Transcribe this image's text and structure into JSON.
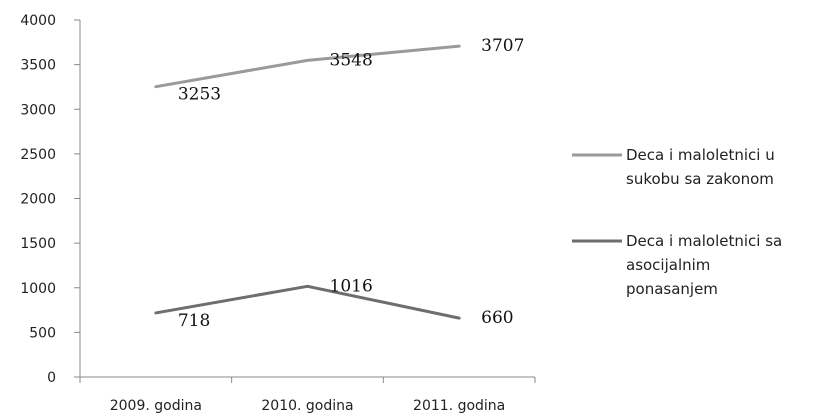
{
  "chart_data": {
    "type": "line",
    "categories": [
      "2009. godina",
      "2010. godina",
      "2011. godina"
    ],
    "series": [
      {
        "name": "Deca i maloletnici u sukobu sa zakonom",
        "values": [
          3253,
          3548,
          3707
        ],
        "color": "#9a9a9a"
      },
      {
        "name": "Deca i maloletnici sa asocijalnim ponasanjem",
        "values": [
          718,
          1016,
          660
        ],
        "color": "#6e6e6e"
      }
    ],
    "ylim": [
      0,
      4000
    ],
    "yticks": [
      "0",
      "500",
      "1000",
      "1500",
      "2000",
      "2500",
      "3000",
      "3500",
      "4000"
    ],
    "data_labels": [
      "3253",
      "3548",
      "3707",
      "718",
      "1016",
      "660"
    ],
    "legend": {
      "position": "right",
      "entries": [
        [
          "Deca i maloletnici u",
          "sukobu sa zakonom"
        ],
        [
          "Deca i maloletnici sa",
          "asocijalnim",
          "ponasanjem"
        ]
      ]
    },
    "grid": false
  }
}
